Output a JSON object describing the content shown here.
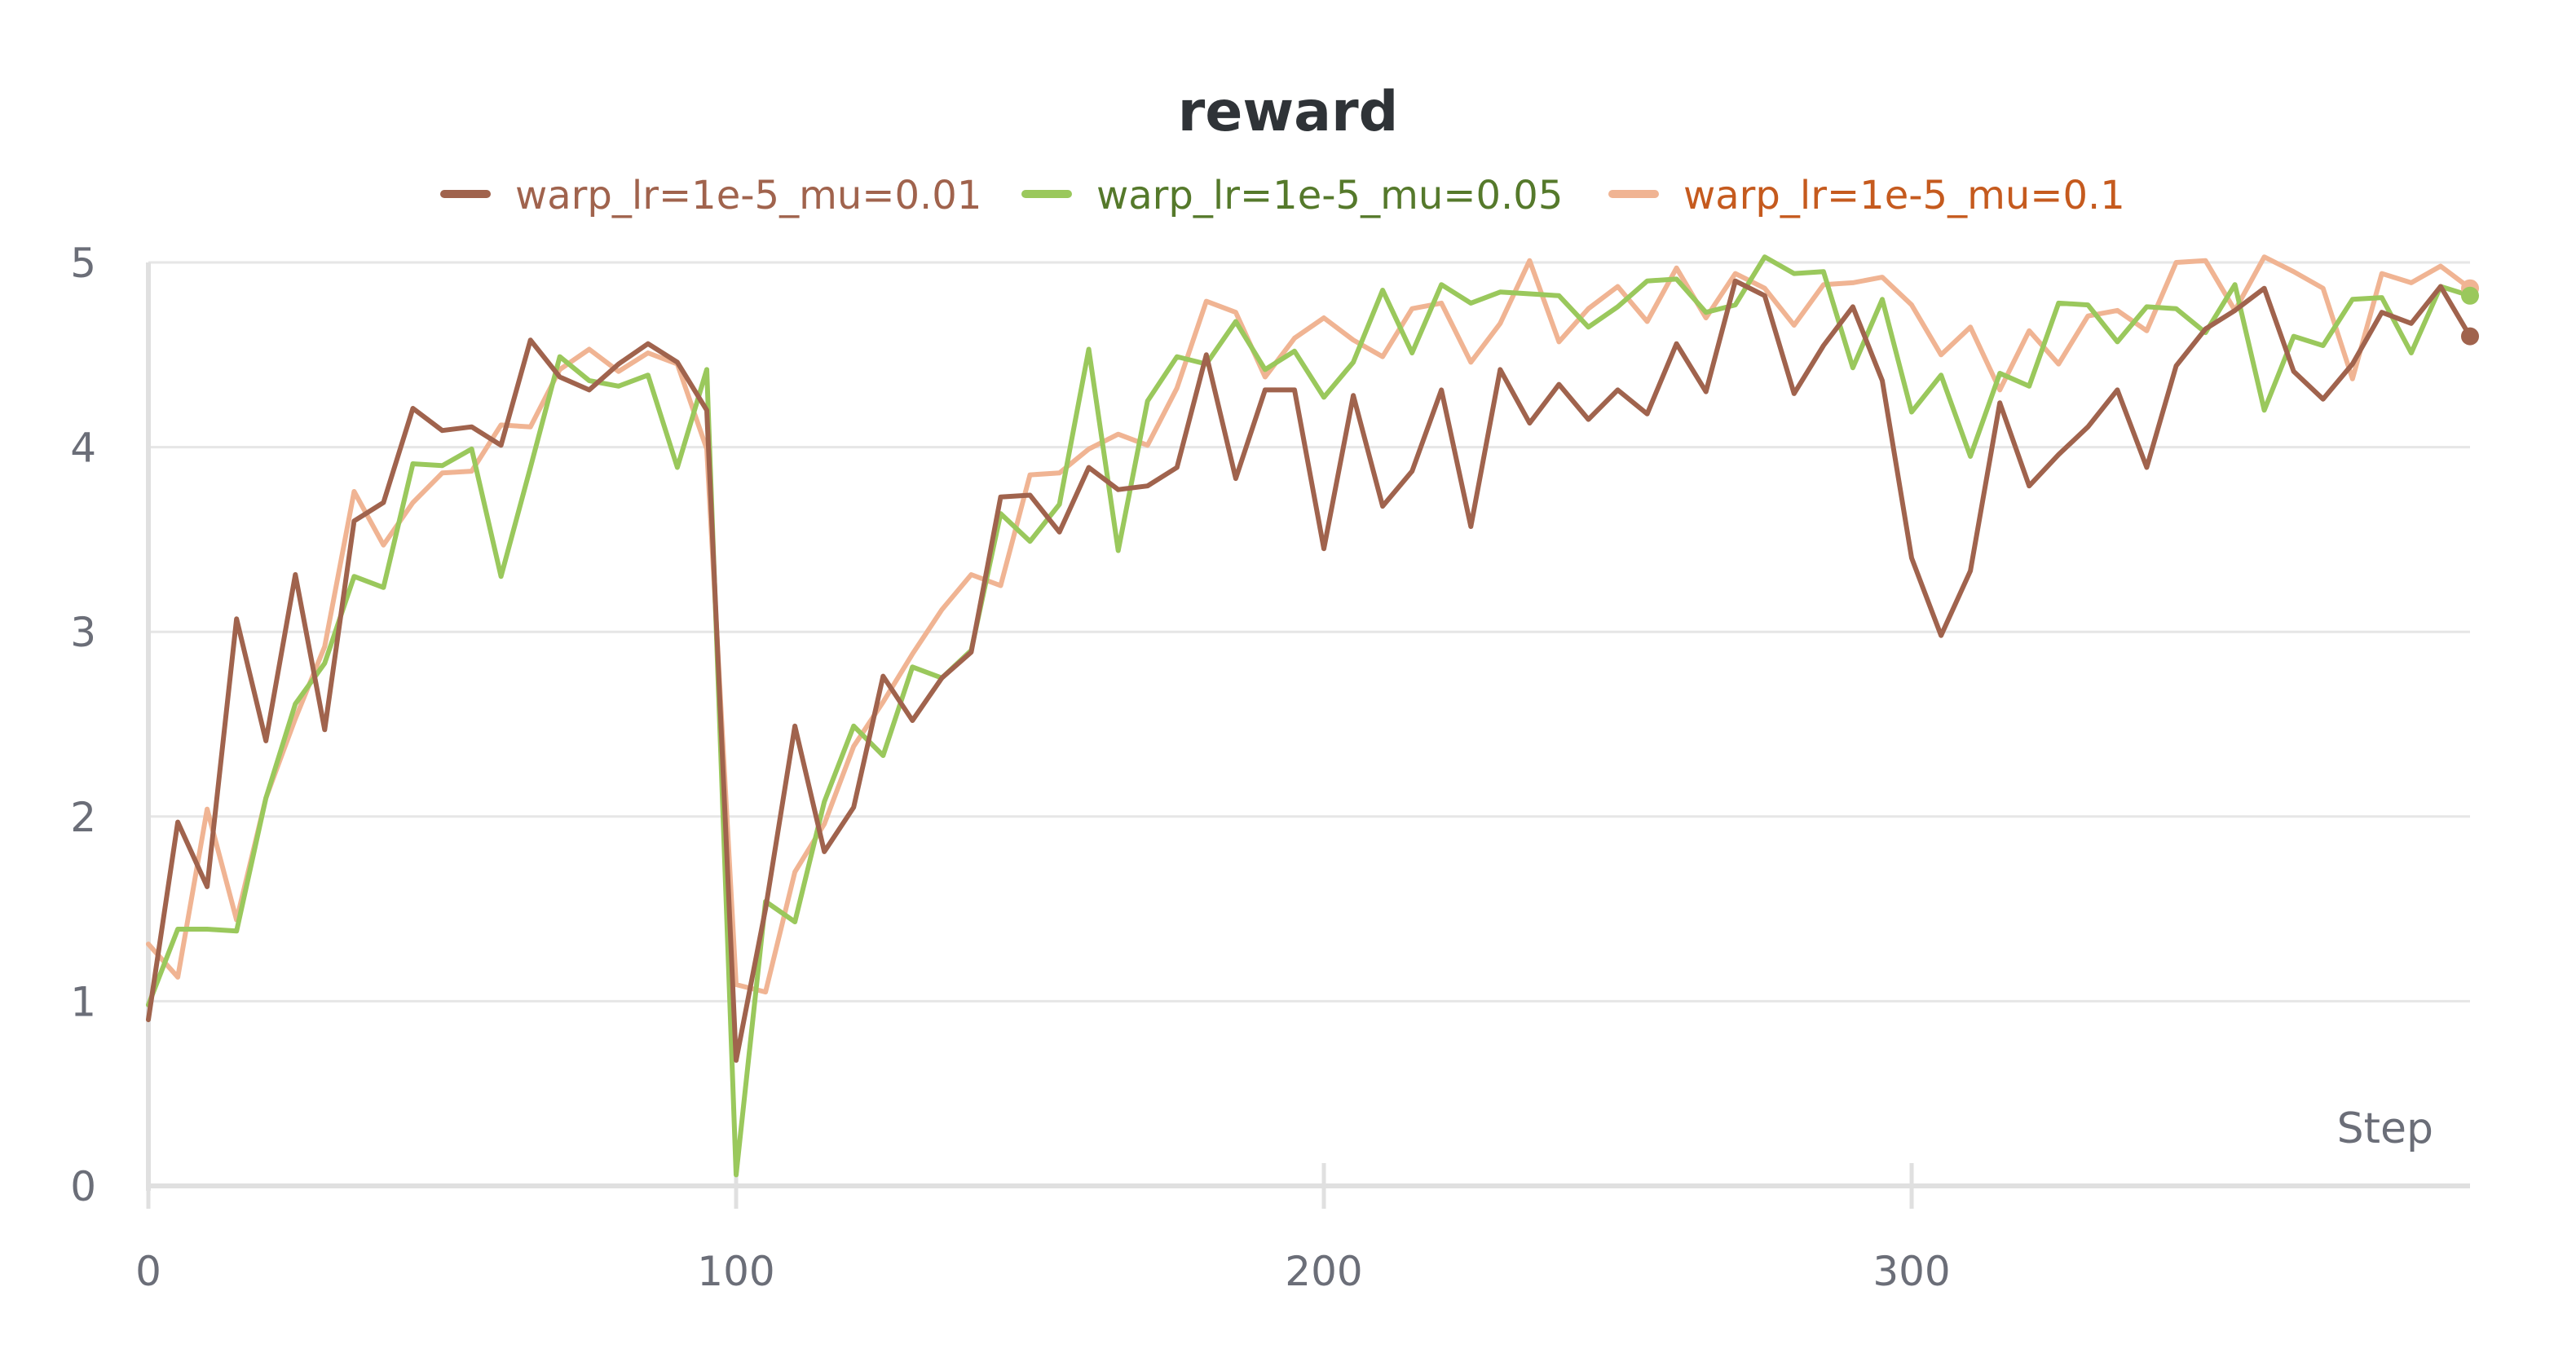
{
  "chart_data": {
    "type": "line",
    "title": "reward",
    "xlabel": "Step",
    "ylabel": "",
    "xlim": [
      0,
      395
    ],
    "ylim": [
      0,
      5
    ],
    "xticks": [
      0,
      100,
      200,
      300
    ],
    "yticks": [
      0,
      1,
      2,
      3,
      4,
      5
    ],
    "legend_position": "top-center",
    "grid": true,
    "x": [
      0,
      5,
      10,
      15,
      20,
      25,
      30,
      35,
      40,
      45,
      50,
      55,
      60,
      65,
      70,
      75,
      80,
      85,
      90,
      95,
      100,
      105,
      110,
      115,
      120,
      125,
      130,
      135,
      140,
      145,
      150,
      155,
      160,
      165,
      170,
      175,
      180,
      185,
      190,
      195,
      200,
      205,
      210,
      215,
      220,
      225,
      230,
      235,
      240,
      245,
      250,
      255,
      260,
      265,
      270,
      275,
      280,
      285,
      290,
      295,
      300,
      305,
      310,
      315,
      320,
      325,
      330,
      335,
      340,
      345,
      350,
      355,
      360,
      365,
      370,
      375,
      380,
      385,
      390,
      395
    ],
    "series": [
      {
        "name": "warp_lr=1e-5_mu=0.01",
        "color": "#a0634d",
        "legend_text_color": "#a0634d",
        "values": [
          0.9,
          1.97,
          1.62,
          3.07,
          2.41,
          3.31,
          2.47,
          3.6,
          3.7,
          4.21,
          4.09,
          4.11,
          4.01,
          4.58,
          4.38,
          4.31,
          4.45,
          4.56,
          4.46,
          4.2,
          0.68,
          1.5,
          2.49,
          1.81,
          2.05,
          2.76,
          2.52,
          2.75,
          2.89,
          3.73,
          3.74,
          3.54,
          3.89,
          3.77,
          3.79,
          3.89,
          4.5,
          3.83,
          4.31,
          4.31,
          3.45,
          4.28,
          3.68,
          3.87,
          4.31,
          3.57,
          4.42,
          4.13,
          4.34,
          4.15,
          4.31,
          4.18,
          4.56,
          4.3,
          4.9,
          4.82,
          4.29,
          4.55,
          4.76,
          4.36,
          3.4,
          2.98,
          3.33,
          4.24,
          3.79,
          3.96,
          4.11,
          4.31,
          3.89,
          4.44,
          4.64,
          4.74,
          4.86,
          4.41,
          4.26,
          4.45,
          4.73,
          4.67,
          4.87,
          4.6
        ]
      },
      {
        "name": "warp_lr=1e-5_mu=0.05",
        "color": "#9ac85c",
        "legend_text_color": "#55792b",
        "values": [
          0.98,
          1.39,
          1.39,
          1.38,
          2.1,
          2.61,
          2.83,
          3.3,
          3.24,
          3.91,
          3.9,
          3.99,
          3.3,
          3.89,
          4.49,
          4.36,
          4.33,
          4.39,
          3.89,
          4.42,
          0.06,
          1.54,
          1.43,
          2.08,
          2.49,
          2.33,
          2.81,
          2.75,
          2.9,
          3.64,
          3.49,
          3.69,
          4.53,
          3.44,
          4.25,
          4.49,
          4.45,
          4.68,
          4.42,
          4.52,
          4.27,
          4.46,
          4.85,
          4.51,
          4.88,
          4.78,
          4.84,
          4.83,
          4.82,
          4.65,
          4.76,
          4.9,
          4.91,
          4.73,
          4.77,
          5.03,
          4.94,
          4.95,
          4.43,
          4.8,
          4.19,
          4.39,
          3.95,
          4.4,
          4.33,
          4.78,
          4.77,
          4.57,
          4.76,
          4.75,
          4.62,
          4.88,
          4.2,
          4.6,
          4.55,
          4.8,
          4.81,
          4.51,
          4.87,
          4.82
        ]
      },
      {
        "name": "warp_lr=1e-5_mu=0.1",
        "color": "#f0b493",
        "legend_text_color": "#c55a1e",
        "values": [
          1.31,
          1.13,
          2.04,
          1.44,
          2.1,
          2.53,
          2.92,
          3.76,
          3.47,
          3.7,
          3.86,
          3.87,
          4.12,
          4.11,
          4.42,
          4.53,
          4.41,
          4.51,
          4.45,
          3.99,
          1.09,
          1.05,
          1.7,
          1.96,
          2.38,
          2.62,
          2.88,
          3.12,
          3.31,
          3.25,
          3.85,
          3.86,
          3.99,
          4.07,
          4.01,
          4.32,
          4.79,
          4.73,
          4.38,
          4.59,
          4.7,
          4.58,
          4.49,
          4.75,
          4.78,
          4.46,
          4.67,
          5.01,
          4.57,
          4.75,
          4.87,
          4.68,
          4.97,
          4.7,
          4.94,
          4.86,
          4.66,
          4.88,
          4.89,
          4.92,
          4.77,
          4.5,
          4.65,
          4.31,
          4.63,
          4.45,
          4.71,
          4.74,
          4.63,
          5.0,
          5.01,
          4.74,
          5.03,
          4.95,
          4.86,
          4.37,
          4.94,
          4.89,
          4.98,
          4.86
        ]
      }
    ]
  }
}
